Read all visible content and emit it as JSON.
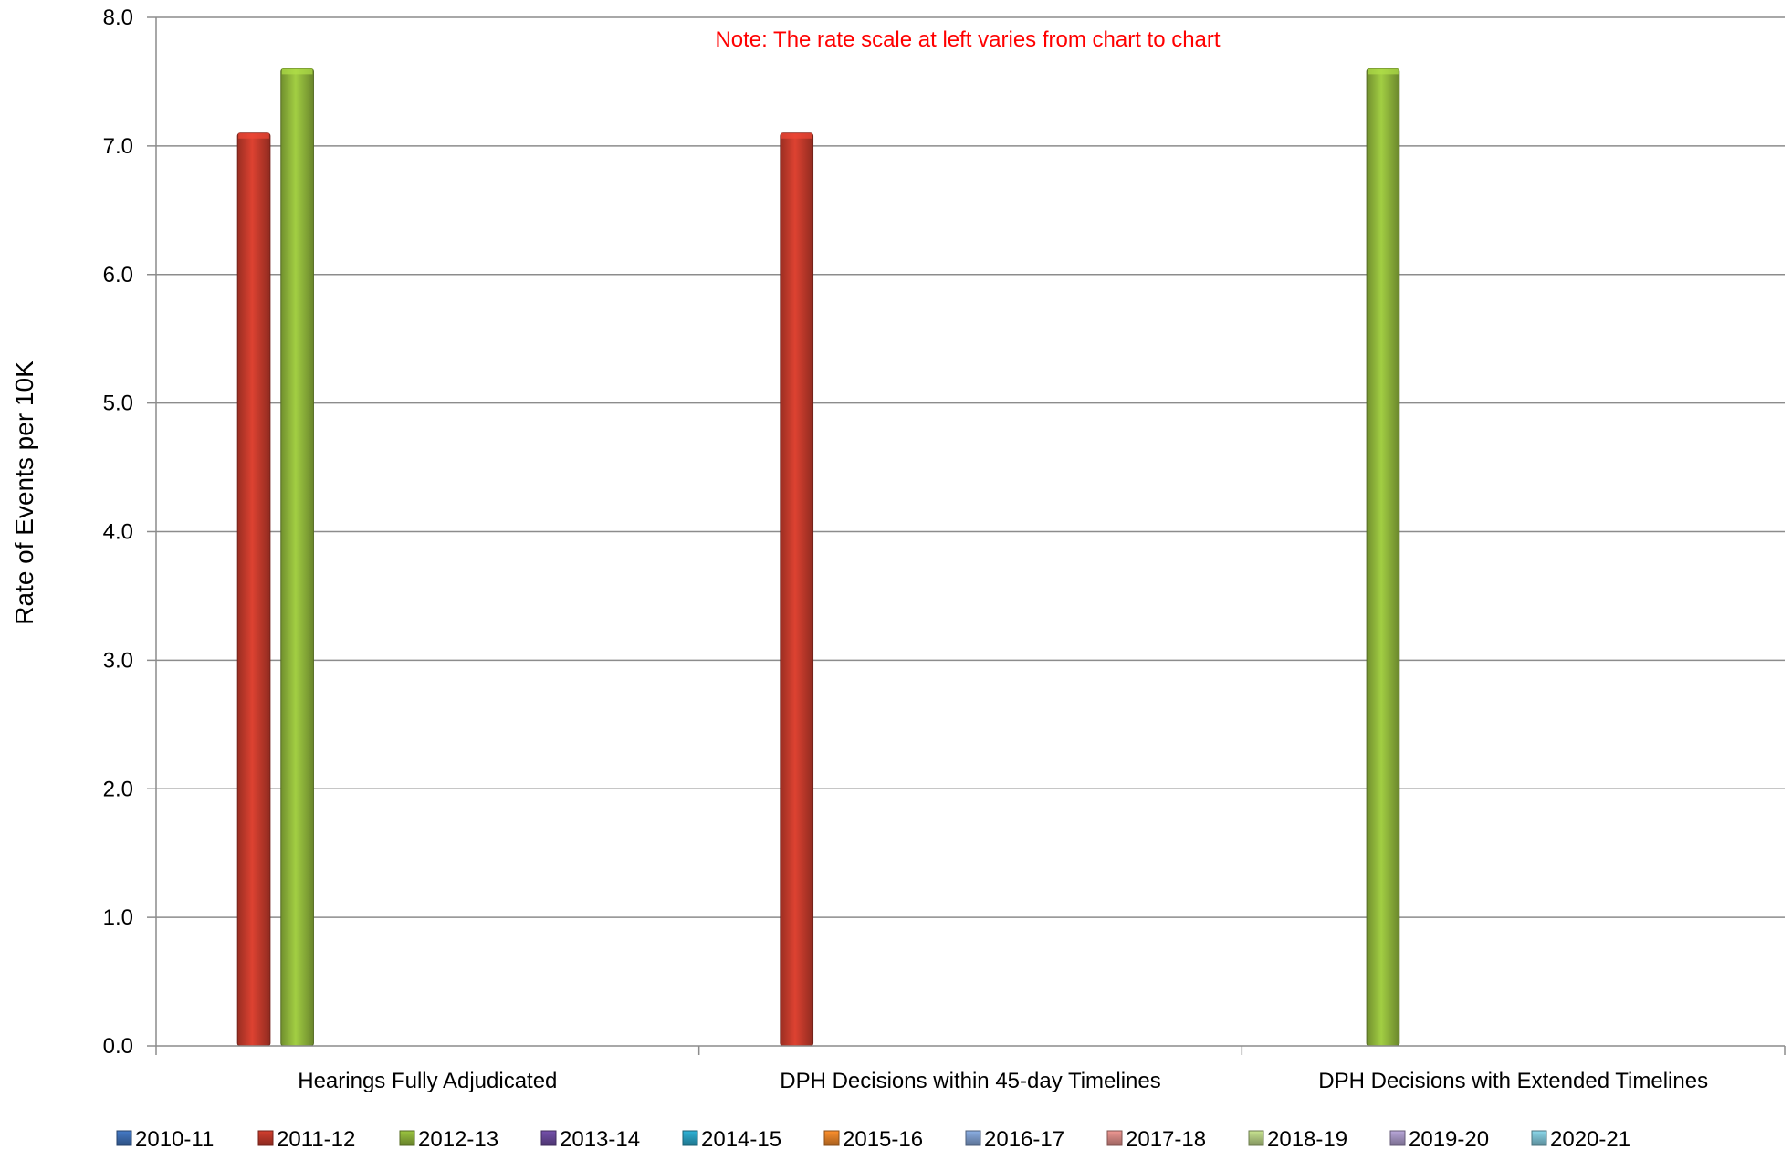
{
  "chart_data": {
    "type": "bar",
    "title": "",
    "xlabel": "",
    "ylabel": "Rate of Events per 10K",
    "ylim": [
      0,
      8
    ],
    "yticks": [
      "0.0",
      "1.0",
      "2.0",
      "3.0",
      "4.0",
      "5.0",
      "6.0",
      "7.0",
      "8.0"
    ],
    "grid": true,
    "legend_position": "bottom",
    "note": "Note:  The rate scale at left varies from chart to chart",
    "note_color": "#ff0000",
    "categories": [
      "Hearings Fully Adjudicated",
      "DPH Decisions within 45-day Timelines",
      "DPH Decisions with Extended Timelines"
    ],
    "series": [
      {
        "name": "2010-11",
        "color": "#3f6fb5",
        "values": [
          null,
          null,
          null
        ]
      },
      {
        "name": "2011-12",
        "color": "#c0392b",
        "values": [
          7.1,
          7.1,
          null
        ]
      },
      {
        "name": "2012-13",
        "color": "#8db33a",
        "values": [
          7.6,
          null,
          7.6
        ]
      },
      {
        "name": "2013-14",
        "color": "#6a4a9c",
        "values": [
          null,
          null,
          null
        ]
      },
      {
        "name": "2014-15",
        "color": "#2ba3c4",
        "values": [
          null,
          null,
          null
        ]
      },
      {
        "name": "2015-16",
        "color": "#e8842a",
        "values": [
          null,
          null,
          null
        ]
      },
      {
        "name": "2016-17",
        "color": "#7f9fcf",
        "values": [
          null,
          null,
          null
        ]
      },
      {
        "name": "2017-18",
        "color": "#d98a86",
        "values": [
          null,
          null,
          null
        ]
      },
      {
        "name": "2018-19",
        "color": "#b6cf84",
        "values": [
          null,
          null,
          null
        ]
      },
      {
        "name": "2019-20",
        "color": "#a898c6",
        "values": [
          null,
          null,
          null
        ]
      },
      {
        "name": "2020-21",
        "color": "#7fc4d6",
        "values": [
          null,
          null,
          null
        ]
      }
    ]
  }
}
